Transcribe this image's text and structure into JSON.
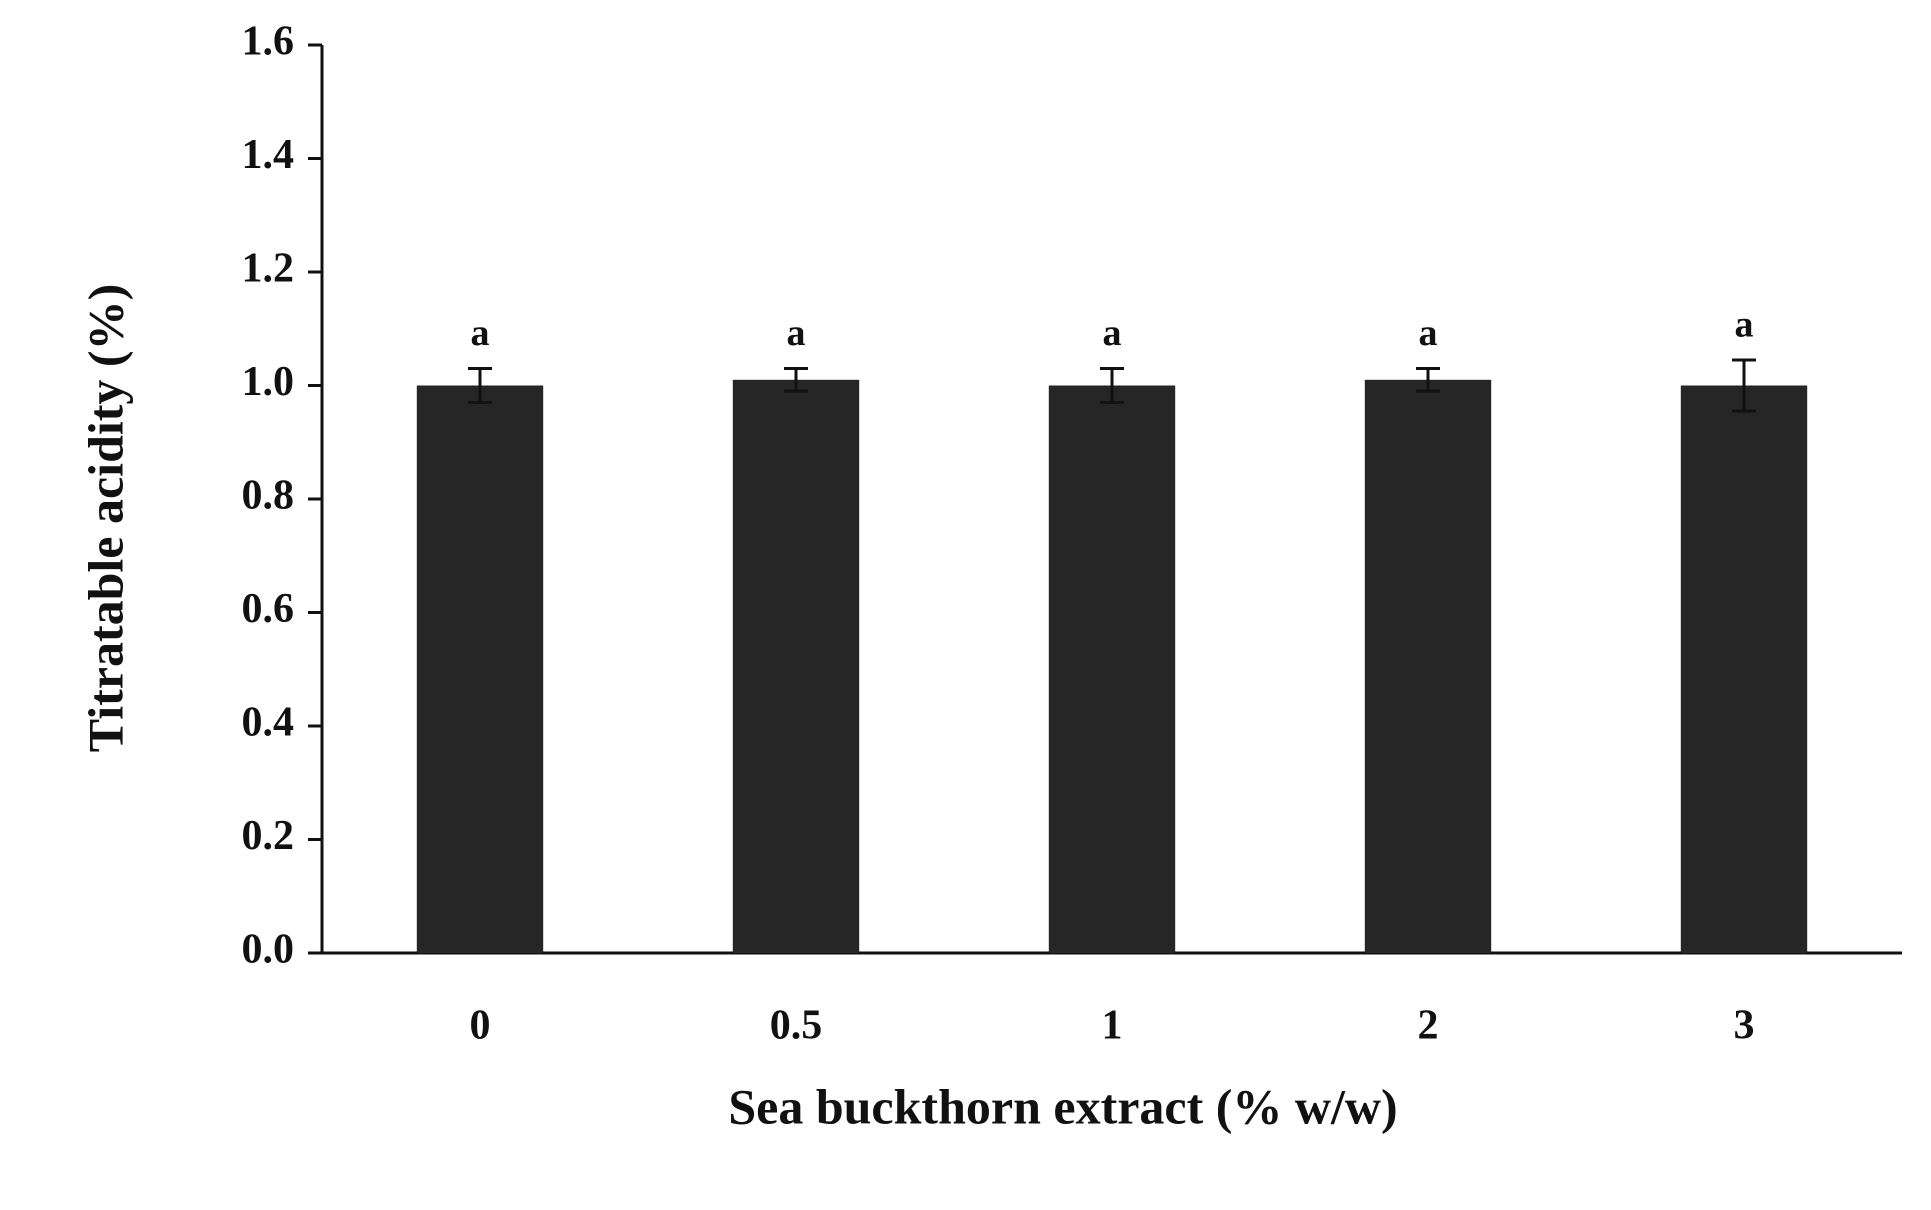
{
  "chart_data": {
    "type": "bar",
    "x_label": "Sea buckthorn extract (% w/w)",
    "y_label": "Titratable acidity (%)",
    "categories": [
      "0",
      "0.5",
      "1",
      "2",
      "3"
    ],
    "values": [
      1.0,
      1.01,
      1.0,
      1.01,
      1.0
    ],
    "errors": [
      0.03,
      0.02,
      0.03,
      0.02,
      0.045
    ],
    "annotations": [
      "a",
      "a",
      "a",
      "a",
      "a"
    ],
    "color": "#262626",
    "ylim": [
      0,
      1.6
    ],
    "yticks": [
      {
        "value": 0,
        "label": "0.0"
      },
      0.2,
      0.4,
      0.6,
      0.8,
      {
        "value": 1,
        "label": "1.0"
      },
      1.2,
      1.4,
      1.6
    ],
    "grid": false
  }
}
